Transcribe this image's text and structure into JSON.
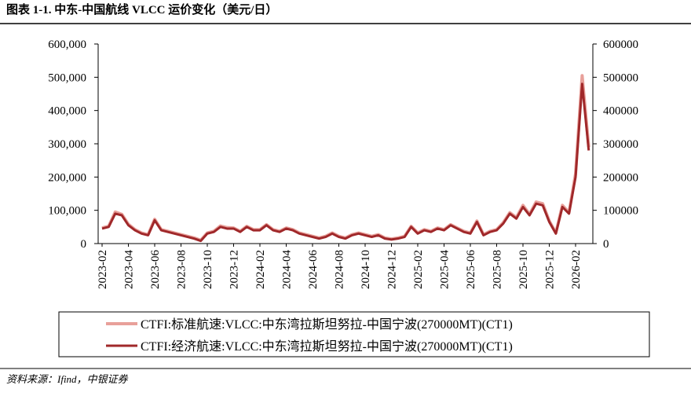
{
  "chart_data": {
    "type": "line",
    "title": "图表 1-1. 中东-中国航线 VLCC 运价变化（美元/日）",
    "source": "资料来源：Ifind，中银证券",
    "categories": [
      "2023-02",
      null,
      null,
      null,
      "2023-04",
      null,
      null,
      null,
      "2023-06",
      null,
      null,
      null,
      "2023-08",
      null,
      null,
      null,
      "2023-10",
      null,
      null,
      null,
      "2023-12",
      null,
      null,
      null,
      "2024-02",
      null,
      null,
      null,
      "2024-04",
      null,
      null,
      null,
      "2024-06",
      null,
      null,
      null,
      "2024-08",
      null,
      null,
      null,
      "2024-10",
      null,
      null,
      null,
      "2024-12",
      null,
      null,
      null,
      "2025-02",
      null,
      null,
      null,
      "2025-04",
      null,
      null,
      null,
      "2025-06",
      null,
      null,
      null,
      "2025-08",
      null,
      null,
      null,
      "2025-10",
      null,
      null,
      null,
      "2025-12",
      null,
      null,
      null,
      "2026-02",
      null,
      null
    ],
    "series": [
      {
        "name": "CTFI:标准航速:VLCC:中东湾拉斯坦努拉-中国宁波(270000MT)(CT1)",
        "color": "#e8a09a",
        "width": 4,
        "values": [
          47000,
          52000,
          95000,
          88000,
          58000,
          42000,
          32000,
          27000,
          73000,
          42000,
          37000,
          32000,
          27000,
          22000,
          17000,
          10000,
          32000,
          37000,
          53000,
          48000,
          47000,
          37000,
          52000,
          42000,
          42000,
          57000,
          42000,
          37000,
          47000,
          42000,
          32000,
          27000,
          22000,
          17000,
          22000,
          32000,
          22000,
          17000,
          27000,
          32000,
          27000,
          22000,
          27000,
          17000,
          14000,
          17000,
          22000,
          52000,
          32000,
          42000,
          37000,
          47000,
          42000,
          57000,
          47000,
          37000,
          32000,
          68000,
          27000,
          37000,
          42000,
          63000,
          93000,
          78000,
          115000,
          88000,
          125000,
          120000,
          68000,
          32000,
          115000,
          93000,
          210000,
          505000,
          290000
        ]
      },
      {
        "name": "CTFI:经济航速:VLCC:中东湾拉斯坦努拉-中国宁波(270000MT)(CT1)",
        "color": "#a0282a",
        "width": 3,
        "values": [
          45000,
          50000,
          90000,
          85000,
          55000,
          40000,
          30000,
          25000,
          70000,
          40000,
          35000,
          30000,
          25000,
          20000,
          15000,
          8000,
          30000,
          35000,
          50000,
          45000,
          45000,
          35000,
          50000,
          40000,
          40000,
          55000,
          40000,
          35000,
          45000,
          40000,
          30000,
          25000,
          20000,
          15000,
          20000,
          30000,
          20000,
          15000,
          25000,
          30000,
          25000,
          20000,
          25000,
          15000,
          12000,
          15000,
          20000,
          50000,
          30000,
          40000,
          35000,
          45000,
          40000,
          55000,
          45000,
          35000,
          30000,
          65000,
          25000,
          35000,
          40000,
          60000,
          90000,
          75000,
          110000,
          85000,
          120000,
          115000,
          65000,
          30000,
          110000,
          90000,
          200000,
          480000,
          280000
        ]
      }
    ],
    "ylim": [
      0,
      600000
    ],
    "yticks": [
      0,
      {
        "value": 100000,
        "label": "100,000"
      },
      {
        "value": 200000,
        "label": "200,000"
      },
      {
        "value": 300000,
        "label": "300,000"
      },
      {
        "value": 400000,
        "label": "400,000"
      },
      {
        "value": 500000,
        "label": "500,000"
      },
      {
        "value": 600000,
        "label": "600,000"
      }
    ],
    "y2lim": [
      0,
      600000
    ],
    "y2ticks": [
      0,
      100000,
      200000,
      300000,
      400000,
      500000,
      600000
    ]
  }
}
